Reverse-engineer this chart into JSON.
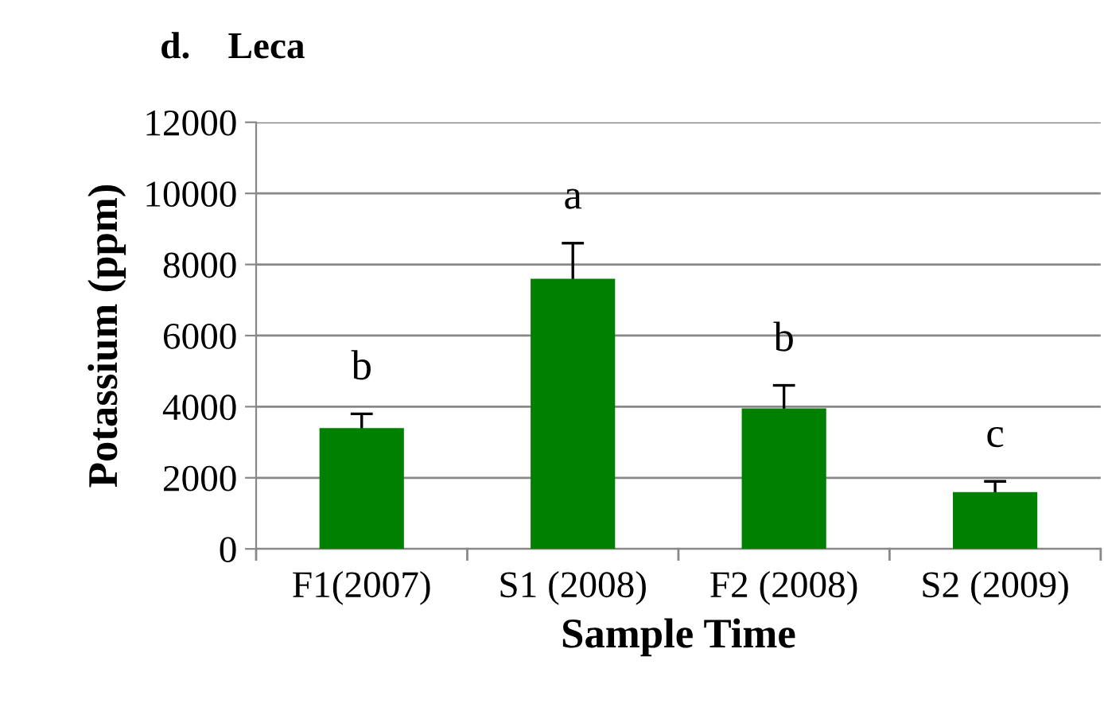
{
  "chart_data": {
    "type": "bar",
    "title": "d.    Leca",
    "xlabel": "Sample Time",
    "ylabel": "Potassium (ppm)",
    "categories": [
      "F1(2007)",
      "S1 (2008)",
      "F2 (2008)",
      "S2 (2009)"
    ],
    "values": [
      3400,
      7600,
      3950,
      1600
    ],
    "errors": [
      400,
      1000,
      650,
      300
    ],
    "color": "#008000",
    "ylim": [
      0,
      12000
    ],
    "yticks": [
      0,
      2000,
      4000,
      6000,
      8000,
      10000,
      12000
    ],
    "grid": "y",
    "annotations": [
      "b",
      "a",
      "b",
      "c"
    ]
  }
}
